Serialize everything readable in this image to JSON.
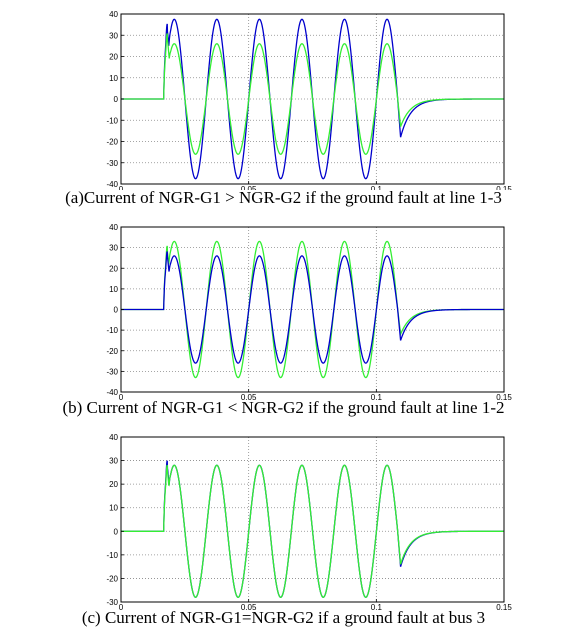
{
  "figure": {
    "colors": {
      "background": "#ffffff",
      "plot_bg": "#ffffff",
      "plot_frame": "#000000",
      "grid": "#888888"
    },
    "captions": [
      "(a)Current of NGR-G1 > NGR-G2 if the ground fault at line 1-3",
      "(b)  Current of NGR-G1 < NGR-G2 if the ground fault at line 1-2",
      "(c) Current of NGR-G1=NGR-G2 if a ground fault at bus 3"
    ]
  },
  "chart_data": [
    {
      "type": "line",
      "title": "",
      "xlabel": "",
      "ylabel": "",
      "xlim": [
        0,
        0.15
      ],
      "ylim": [
        -40,
        40
      ],
      "xticks": [
        "0",
        "0.05",
        "0.1",
        "0.15"
      ],
      "yticks": [
        "40",
        "30",
        "20",
        "10",
        "0",
        "-10",
        "-20",
        "-30",
        "-40"
      ],
      "grid": true,
      "series": [
        {
          "color": "#0000cc",
          "fault_time": 0.0167,
          "end_time": 0.1083,
          "frequency_hz": 60,
          "peak": 37.5,
          "initial_spike": 38,
          "decay_tail_min": -18
        },
        {
          "color": "#33ee33",
          "fault_time": 0.0167,
          "end_time": 0.1083,
          "frequency_hz": 60,
          "peak": 26,
          "initial_spike": 33,
          "decay_tail_min": -13
        }
      ],
      "caption": "(a)Current of NGR-G1 > NGR-G2 if the ground fault at line 1-3"
    },
    {
      "type": "line",
      "title": "",
      "xlabel": "",
      "ylabel": "",
      "xlim": [
        0,
        0.15
      ],
      "ylim": [
        -40,
        40
      ],
      "xticks": [
        "0",
        "0.05",
        "0.1",
        "0.15"
      ],
      "yticks": [
        "40",
        "30",
        "20",
        "10",
        "0",
        "-10",
        "-20",
        "-30",
        "-40"
      ],
      "grid": true,
      "series": [
        {
          "color": "#33ee33",
          "fault_time": 0.0167,
          "end_time": 0.1083,
          "frequency_hz": 60,
          "peak": 33,
          "initial_spike": 33,
          "decay_tail_min": -12
        },
        {
          "color": "#0000cc",
          "fault_time": 0.0167,
          "end_time": 0.1083,
          "frequency_hz": 60,
          "peak": 26,
          "initial_spike": 30,
          "decay_tail_min": -15
        }
      ],
      "caption": "(b)  Current of NGR-G1 < NGR-G2 if the ground fault at line 1-2"
    },
    {
      "type": "line",
      "title": "",
      "xlabel": "",
      "ylabel": "",
      "xlim": [
        0,
        0.15
      ],
      "ylim": [
        -30,
        40
      ],
      "xticks": [
        "0",
        "0.05",
        "0.1",
        "0.15"
      ],
      "yticks": [
        "40",
        "30",
        "20",
        "10",
        "0",
        "-10",
        "-20",
        "-30"
      ],
      "grid": true,
      "series": [
        {
          "color": "#0000cc",
          "fault_time": 0.0167,
          "end_time": 0.1083,
          "frequency_hz": 60,
          "peak": 28,
          "initial_spike": 32,
          "decay_tail_min": -15
        },
        {
          "color": "#33ee33",
          "fault_time": 0.0167,
          "end_time": 0.1083,
          "frequency_hz": 60,
          "peak": 28,
          "initial_spike": 30,
          "decay_tail_min": -14
        }
      ],
      "caption": "(c) Current of NGR-G1=NGR-G2 if a ground fault at bus 3"
    }
  ]
}
